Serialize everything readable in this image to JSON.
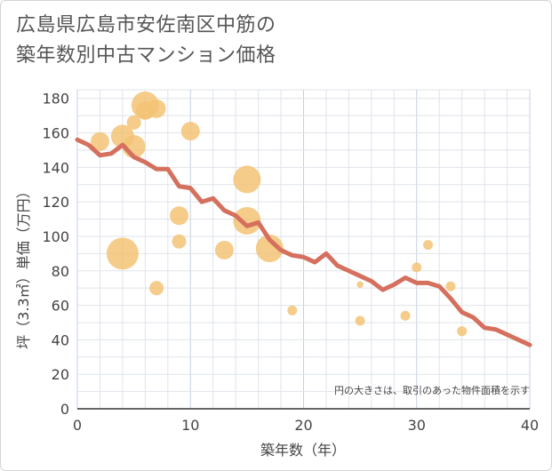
{
  "title_line1": "広島県広島市安佐南区中筋の",
  "title_line2": "築年数別中古マンション価格",
  "chart_data": {
    "type": "scatter",
    "xlabel": "築年数（年）",
    "ylabel": "坪（3.3㎡）単価（万円）",
    "xlim": [
      0,
      40
    ],
    "ylim": [
      0,
      185
    ],
    "x_ticks": [
      0,
      10,
      20,
      30,
      40
    ],
    "y_ticks": [
      0,
      20,
      40,
      60,
      80,
      100,
      120,
      140,
      160,
      180
    ],
    "grid": true,
    "note": "円の大きさは、取引のあった物件面積を示す",
    "colors": {
      "bubble": "#f3c376",
      "line": "#d4705d",
      "grid": "#dfe3ea",
      "major_grid": "#c5d0df"
    },
    "bubbles": [
      {
        "x": 2,
        "y": 155,
        "size": 3
      },
      {
        "x": 4,
        "y": 158,
        "size": 4
      },
      {
        "x": 4,
        "y": 90,
        "size": 6
      },
      {
        "x": 5,
        "y": 152,
        "size": 4
      },
      {
        "x": 5,
        "y": 166,
        "size": 2
      },
      {
        "x": 6,
        "y": 176,
        "size": 5
      },
      {
        "x": 6,
        "y": 173,
        "size": 3
      },
      {
        "x": 7,
        "y": 174,
        "size": 3
      },
      {
        "x": 7,
        "y": 70,
        "size": 2
      },
      {
        "x": 10,
        "y": 161,
        "size": 3
      },
      {
        "x": 9,
        "y": 112,
        "size": 3
      },
      {
        "x": 9,
        "y": 97,
        "size": 2
      },
      {
        "x": 13,
        "y": 92,
        "size": 3
      },
      {
        "x": 15,
        "y": 133,
        "size": 5
      },
      {
        "x": 15,
        "y": 109,
        "size": 5
      },
      {
        "x": 17,
        "y": 93,
        "size": 5
      },
      {
        "x": 19,
        "y": 57,
        "size": 1
      },
      {
        "x": 25,
        "y": 51,
        "size": 1
      },
      {
        "x": 25,
        "y": 72,
        "size": 0.3
      },
      {
        "x": 29,
        "y": 54,
        "size": 1
      },
      {
        "x": 30,
        "y": 82,
        "size": 1
      },
      {
        "x": 31,
        "y": 95,
        "size": 1
      },
      {
        "x": 33,
        "y": 71,
        "size": 1
      },
      {
        "x": 34,
        "y": 45,
        "size": 1
      }
    ],
    "trend": {
      "x": [
        0,
        1,
        2,
        3,
        4,
        5,
        6,
        7,
        8,
        9,
        10,
        11,
        12,
        13,
        14,
        15,
        16,
        17,
        18,
        19,
        20,
        21,
        22,
        23,
        24,
        25,
        26,
        27,
        28,
        29,
        30,
        31,
        32,
        33,
        34,
        35,
        36,
        37,
        38,
        39,
        40
      ],
      "y": [
        156,
        153,
        147,
        148,
        153,
        146,
        143,
        139,
        139,
        129,
        128,
        120,
        122,
        115,
        112,
        106,
        108,
        98,
        92,
        89,
        88,
        85,
        90,
        83,
        80,
        77,
        74,
        69,
        72,
        76,
        73,
        73,
        71,
        64,
        56,
        53,
        47,
        46,
        43,
        40,
        37
      ]
    }
  }
}
